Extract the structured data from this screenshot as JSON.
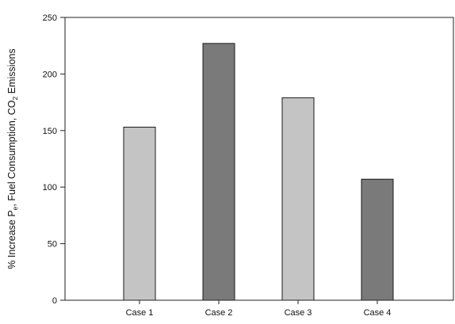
{
  "chart_data": {
    "type": "bar",
    "title": "",
    "xlabel": "",
    "ylabel": "% Increase Pₛₓ, Fuel Consumption, CO₂ Emissions",
    "ylabel_parts": {
      "pre": "% Increase P",
      "sub1": "e",
      "mid": ", Fuel Consumption, CO",
      "sub2": "2",
      "post": " Emissions"
    },
    "categories": [
      "Case 1",
      "Case 2",
      "Case 3",
      "Case 4"
    ],
    "values": [
      153,
      227,
      179,
      107
    ],
    "ylim": [
      0,
      250
    ],
    "yticks": [
      0,
      50,
      100,
      150,
      200,
      250
    ],
    "bar_colors": [
      "#c4c4c4",
      "#7a7a7a",
      "#c4c4c4",
      "#7a7a7a"
    ],
    "grid": false,
    "legend": "none"
  }
}
